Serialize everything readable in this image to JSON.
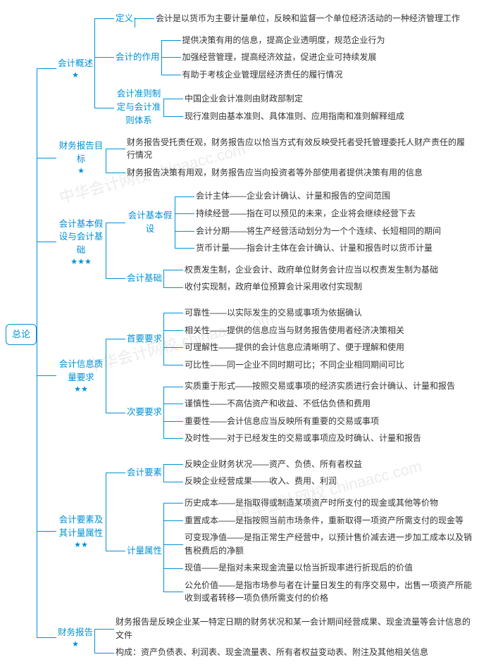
{
  "type": "tree",
  "colors": {
    "line": "#0091d5",
    "node_text": "#0091d5",
    "leaf_text": "#333333",
    "bg": "#ffffff",
    "star": "#0091d5"
  },
  "fontsize": {
    "root": 13,
    "node": 12.5,
    "leaf": 12
  },
  "root": "总论",
  "watermark": "中华会计网校 chinaacc.com",
  "branches": [
    {
      "label": "会计概述",
      "stars": "★",
      "children": [
        {
          "label": "定义",
          "leaves": [
            "会计是以货币为主要计量单位，反映和监督一个单位经济活动的一种经济管理工作"
          ]
        },
        {
          "label": "会计的作用",
          "leaves": [
            "提供决策有用的信息，提高企业透明度，规范企业行为",
            "加强经营管理，提高经济效益，促进企业可持续发展",
            "有助于考核企业管理层经济责任的履行情况"
          ]
        },
        {
          "label": "会计准则制定与会计准则体系",
          "leaves": [
            "中国企业会计准则由财政部制定",
            "现行准则由基本准则、具体准则、应用指南和准则解释组成"
          ]
        }
      ]
    },
    {
      "label": "财务报告目标",
      "stars": "★",
      "leaves": [
        "财务报告受托责任观，财务报告应以恰当方式有效反映受托者受托管理委托人财产责任的履行情况",
        "财务报告决策有用观，财务报告应当向投资者等外部使用者提供决策有用的信息"
      ]
    },
    {
      "label": "会计基本假设与会计基础",
      "stars": "★★★",
      "children": [
        {
          "label": "会计基本假设",
          "leaves": [
            "会计主体——企业会计确认、计量和报告的空间范围",
            "持续经营——指在可以预见的未来，企业将会继续经营下去",
            "会计分期——将生产经营活动划分为一个个连续、长短相同的期间",
            "货币计量——指会计主体在会计确认、计量和报告时以货币计量"
          ]
        },
        {
          "label": "会计基础",
          "leaves": [
            "权责发生制，企业会计、政府单位财务会计应当以权责发生制为基础",
            "收付实现制，政府单位预算会计采用收付实现制"
          ]
        }
      ]
    },
    {
      "label": "会计信息质量要求",
      "stars": "★★",
      "children": [
        {
          "label": "首要要求",
          "leaves": [
            "可靠性——以实际发生的交易或事项为依据确认",
            "相关性——提供的信息应当与财务报告使用者经济决策相关",
            "可理解性——提供的会计信息应清晰明了、便于理解和使用",
            "可比性——同一企业不同时期可比；不同企业相同期间可比"
          ]
        },
        {
          "label": "次要要求",
          "leaves": [
            "实质重于形式——按照交易或事项的经济实质进行会计确认、计量和报告",
            "谨慎性——不高估资产和收益、不低估负债和费用",
            "重要性——会计信息应当反映所有重要的交易或事项",
            "及时性——对于已经发生的交易或事项应及时确认、计量和报告"
          ]
        }
      ]
    },
    {
      "label": "会计要素及其计量属性",
      "stars": "★★",
      "children": [
        {
          "label": "会计要素",
          "leaves": [
            "反映企业财务状况——资产、负债、所有者权益",
            "反映企业经营成果——收入、费用、利润"
          ]
        },
        {
          "label": "计量属性",
          "leaves": [
            "历史成本——是指取得或制造某项资产时所支付的现金或其他等价物",
            "重置成本——是指按照当前市场条件，重新取得一项资产所需支付的现金等",
            "可变现净值——是指正常生产经营中，以预计售价减去进一步加工成本以及销售税费后的净额",
            "现值——是指对未来现金流量以恰当折现率进行折现后的价值",
            "公允价值——是指市场参与者在计量日发生的有序交易中，出售一项资产所能收到或者转移一项负债所需支付的价格"
          ]
        }
      ]
    },
    {
      "label": "财务报告",
      "stars": "★",
      "leaves": [
        "财务报告是反映企业某一特定日期的财务状况和某一会计期间经营成果、现金流量等会计信息的文件",
        "构成：资产负债表、利润表、现金流量表、所有者权益变动表、附注及其他相关信息"
      ]
    }
  ]
}
